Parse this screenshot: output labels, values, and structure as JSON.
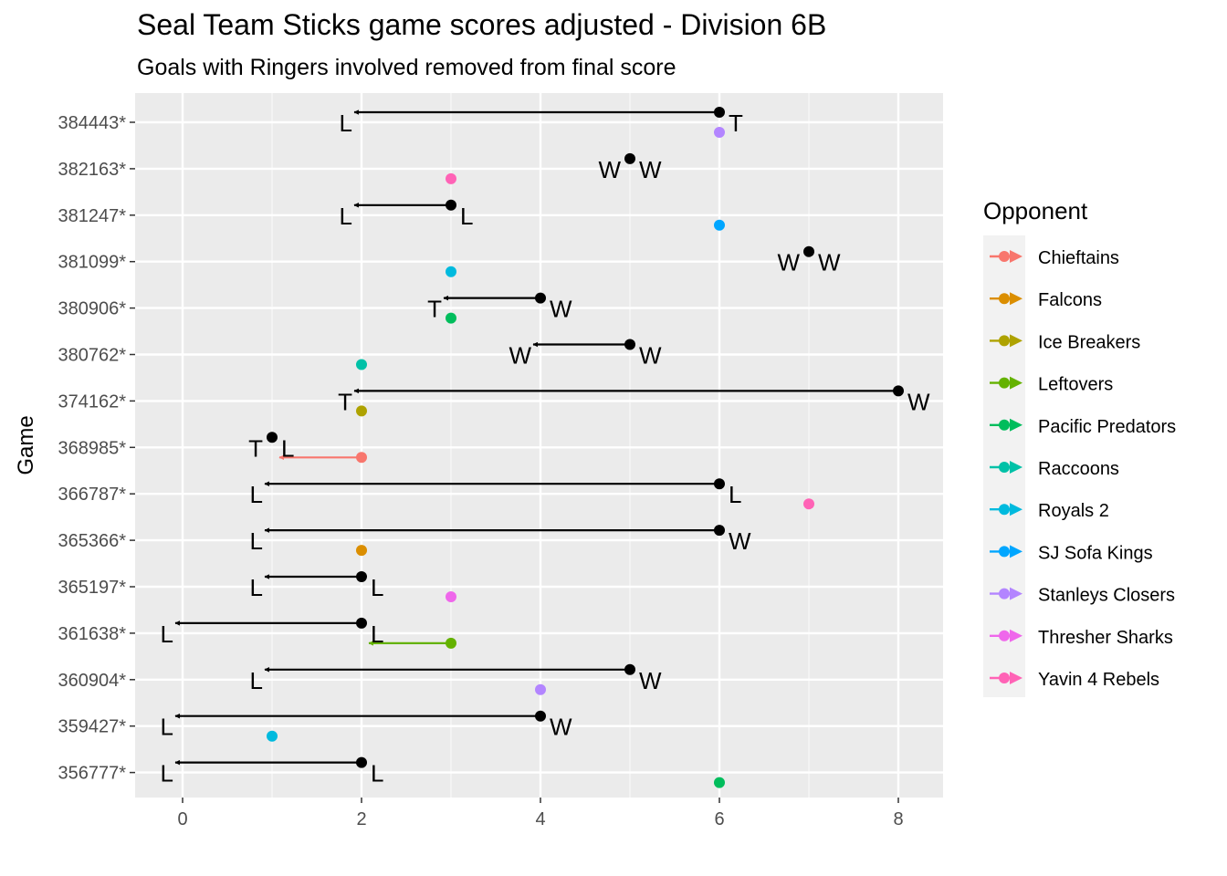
{
  "chart_data": {
    "type": "arrow-dot",
    "title": "Seal Team Sticks game scores adjusted - Division 6B",
    "subtitle": "Goals with Ringers involved removed from final score",
    "xlabel": "",
    "ylabel": "Game",
    "xlim": [
      -0.5,
      8.5
    ],
    "xticks": [
      0,
      2,
      4,
      6,
      8
    ],
    "games": [
      "384443*",
      "382163*",
      "381247*",
      "381099*",
      "380906*",
      "380762*",
      "374162*",
      "368985*",
      "366787*",
      "365366*",
      "365197*",
      "361638*",
      "360904*",
      "359427*",
      "356777*"
    ],
    "legend": {
      "title": "Opponent",
      "items": [
        {
          "name": "Chieftains",
          "color": "#F8766D"
        },
        {
          "name": "Falcons",
          "color": "#DB8E00"
        },
        {
          "name": "Ice Breakers",
          "color": "#AEA200"
        },
        {
          "name": "Leftovers",
          "color": "#64B200"
        },
        {
          "name": "Pacific Predators",
          "color": "#00BD5C"
        },
        {
          "name": "Raccoons",
          "color": "#00C1A7"
        },
        {
          "name": "Royals 2",
          "color": "#00BADE"
        },
        {
          "name": "SJ Sofa Kings",
          "color": "#00A6FF"
        },
        {
          "name": "Stanleys Closers",
          "color": "#B385FF"
        },
        {
          "name": "Thresher Sharks",
          "color": "#EF67EB"
        },
        {
          "name": "Yavin 4 Rebels",
          "color": "#FF63B6"
        }
      ]
    },
    "team_series": [
      {
        "game": "384443*",
        "orig": 6,
        "adj": 2,
        "orig_result": "T",
        "adj_result": "L"
      },
      {
        "game": "382163*",
        "orig": 5,
        "adj": 5,
        "orig_result": "W",
        "adj_result": "W"
      },
      {
        "game": "381247*",
        "orig": 3,
        "adj": 2,
        "orig_result": "L",
        "adj_result": "L"
      },
      {
        "game": "381099*",
        "orig": 7,
        "adj": 7,
        "orig_result": "W",
        "adj_result": "W"
      },
      {
        "game": "380906*",
        "orig": 4,
        "adj": 3,
        "orig_result": "W",
        "adj_result": "T"
      },
      {
        "game": "380762*",
        "orig": 5,
        "adj": 4,
        "orig_result": "W",
        "adj_result": "W"
      },
      {
        "game": "374162*",
        "orig": 8,
        "adj": 2,
        "orig_result": "W",
        "adj_result": "T"
      },
      {
        "game": "368985*",
        "orig": 1,
        "adj": 1,
        "orig_result": "L",
        "adj_result": "T"
      },
      {
        "game": "366787*",
        "orig": 6,
        "adj": 1,
        "orig_result": "L",
        "adj_result": "L"
      },
      {
        "game": "365366*",
        "orig": 6,
        "adj": 1,
        "orig_result": "W",
        "adj_result": "L"
      },
      {
        "game": "365197*",
        "orig": 2,
        "adj": 1,
        "orig_result": "L",
        "adj_result": "L"
      },
      {
        "game": "361638*",
        "orig": 2,
        "adj": 0,
        "orig_result": "L",
        "adj_result": "L"
      },
      {
        "game": "360904*",
        "orig": 5,
        "adj": 1,
        "orig_result": "W",
        "adj_result": "L"
      },
      {
        "game": "359427*",
        "orig": 4,
        "adj": 0,
        "orig_result": "W",
        "adj_result": "L"
      },
      {
        "game": "356777*",
        "orig": 2,
        "adj": 0,
        "orig_result": "L",
        "adj_result": "L"
      }
    ],
    "opponent_series": [
      {
        "game": "384443*",
        "opponent": "Stanleys Closers",
        "orig": 6,
        "adj": 6
      },
      {
        "game": "382163*",
        "opponent": "Yavin 4 Rebels",
        "orig": 3,
        "adj": 3
      },
      {
        "game": "381247*",
        "opponent": "SJ Sofa Kings",
        "orig": 6,
        "adj": 6
      },
      {
        "game": "381099*",
        "opponent": "Royals 2",
        "orig": 3,
        "adj": 3
      },
      {
        "game": "380906*",
        "opponent": "Pacific Predators",
        "orig": 3,
        "adj": 3
      },
      {
        "game": "380762*",
        "opponent": "Raccoons",
        "orig": 2,
        "adj": 2
      },
      {
        "game": "374162*",
        "opponent": "Ice Breakers",
        "orig": 2,
        "adj": 2
      },
      {
        "game": "368985*",
        "opponent": "Chieftains",
        "orig": 2,
        "adj": 1
      },
      {
        "game": "366787*",
        "opponent": "Yavin 4 Rebels",
        "orig": 7,
        "adj": 7
      },
      {
        "game": "365366*",
        "opponent": "Falcons",
        "orig": 2,
        "adj": 2
      },
      {
        "game": "365197*",
        "opponent": "Thresher Sharks",
        "orig": 3,
        "adj": 3
      },
      {
        "game": "361638*",
        "opponent": "Leftovers",
        "orig": 3,
        "adj": 2
      },
      {
        "game": "360904*",
        "opponent": "Stanleys Closers",
        "orig": 4,
        "adj": 4
      },
      {
        "game": "359427*",
        "opponent": "Royals 2",
        "orig": 1,
        "adj": 1
      },
      {
        "game": "356777*",
        "opponent": "Pacific Predators",
        "orig": 6,
        "adj": 6
      }
    ]
  }
}
